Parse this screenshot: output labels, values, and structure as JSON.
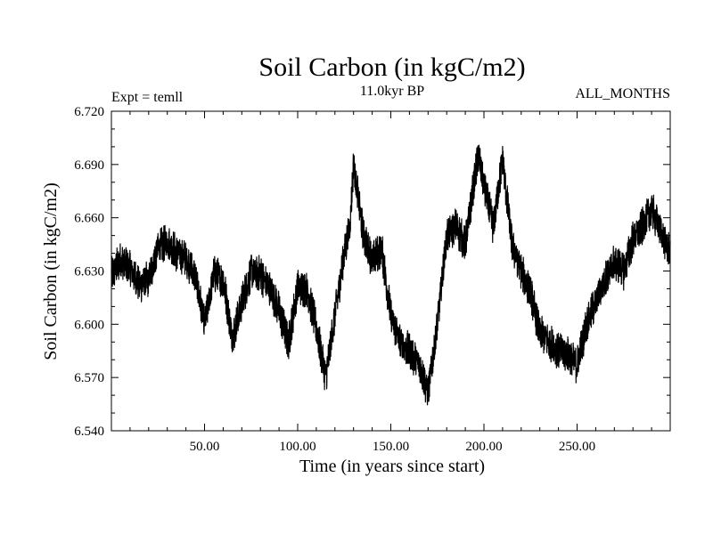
{
  "chart_data": {
    "type": "line",
    "title": "Soil Carbon (in kgC/m2)",
    "subtitle_left": "Expt = temll",
    "subtitle_center": "11.0kyr BP",
    "subtitle_right": "ALL_MONTHS",
    "xlabel": "Time (in years since start)",
    "ylabel": "Soil Carbon (in kgC/m2)",
    "xlim": [
      0,
      300
    ],
    "ylim": [
      6.54,
      6.72
    ],
    "xticks": [
      50,
      100,
      150,
      200,
      250
    ],
    "xtick_labels": [
      "50.00",
      "100.00",
      "150.00",
      "200.00",
      "250.00"
    ],
    "yticks": [
      6.54,
      6.57,
      6.6,
      6.63,
      6.66,
      6.69,
      6.72
    ],
    "ytick_labels": [
      "6.540",
      "6.570",
      "6.600",
      "6.630",
      "6.660",
      "6.690",
      "6.720"
    ],
    "series": [
      {
        "name": "Soil Carbon",
        "x": [
          0,
          5,
          10,
          15,
          20,
          25,
          30,
          35,
          40,
          45,
          50,
          55,
          60,
          65,
          70,
          75,
          80,
          85,
          90,
          95,
          100,
          105,
          110,
          115,
          120,
          125,
          128,
          130,
          135,
          140,
          145,
          150,
          155,
          160,
          165,
          170,
          175,
          180,
          185,
          190,
          195,
          197,
          200,
          205,
          210,
          215,
          220,
          225,
          230,
          235,
          240,
          245,
          250,
          255,
          260,
          265,
          270,
          275,
          280,
          285,
          290,
          295,
          300
        ],
        "y": [
          6.628,
          6.636,
          6.632,
          6.622,
          6.625,
          6.643,
          6.647,
          6.64,
          6.637,
          6.627,
          6.6,
          6.628,
          6.625,
          6.592,
          6.612,
          6.63,
          6.628,
          6.62,
          6.608,
          6.589,
          6.621,
          6.62,
          6.598,
          6.57,
          6.605,
          6.64,
          6.655,
          6.69,
          6.652,
          6.636,
          6.643,
          6.605,
          6.59,
          6.585,
          6.578,
          6.562,
          6.6,
          6.65,
          6.655,
          6.645,
          6.682,
          6.695,
          6.678,
          6.655,
          6.693,
          6.645,
          6.63,
          6.618,
          6.595,
          6.59,
          6.585,
          6.583,
          6.577,
          6.6,
          6.612,
          6.625,
          6.635,
          6.63,
          6.648,
          6.655,
          6.665,
          6.652,
          6.64
        ]
      }
    ]
  }
}
